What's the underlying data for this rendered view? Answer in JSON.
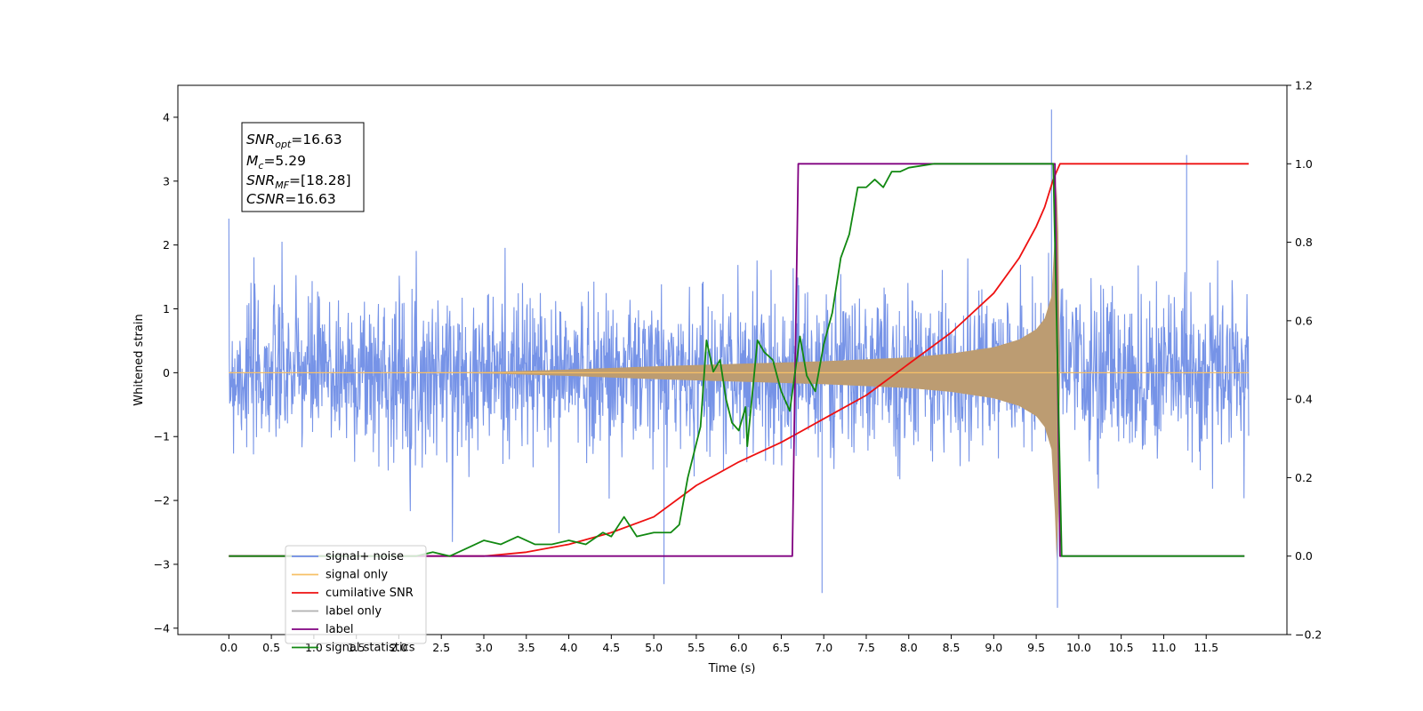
{
  "chart_data": {
    "type": "line",
    "xlabel": "Time (s)",
    "ylabel_left": "Whitened strain",
    "ylabel_right": "",
    "xlim": [
      -0.6,
      12.45
    ],
    "ylim_left": [
      -4.1,
      4.5
    ],
    "ylim_right": [
      -0.2,
      1.2
    ],
    "x_ticks": [
      "0.0",
      "0.5",
      "1.0",
      "1.5",
      "2.0",
      "2.5",
      "3.0",
      "3.5",
      "4.0",
      "4.5",
      "5.0",
      "5.5",
      "6.0",
      "6.5",
      "7.0",
      "7.5",
      "8.0",
      "8.5",
      "9.0",
      "9.5",
      "10.0",
      "10.5",
      "11.0",
      "11.5"
    ],
    "y_left_ticks": [
      "4",
      "3",
      "2",
      "1",
      "0",
      "−1",
      "−2",
      "−3",
      "−4"
    ],
    "y_right_ticks": [
      "1.2",
      "1.0",
      "0.8",
      "0.6",
      "0.4",
      "0.2",
      "0.0",
      "−0.2"
    ],
    "grid": false,
    "legend_position": "lower-left",
    "annotation": {
      "snr_opt": {
        "base": "SNR",
        "sub": "opt",
        "value": "=16.63"
      },
      "mc": {
        "base": "M",
        "sub": "c",
        "value": "=5.29"
      },
      "snr_mf": {
        "base": "SNR",
        "sub": "MF",
        "value": "=[18.28]"
      },
      "csnr": {
        "base": "CSNR",
        "value": "=16.63"
      }
    },
    "series": [
      {
        "name": "signal+ noise",
        "axis": "left",
        "color": "#6f8de6",
        "kind": "noise",
        "x_range": [
          0.0,
          12.0
        ],
        "typical_range": [
          -2.3,
          2.3
        ],
        "extremes": [
          [
            9.68,
            4.12
          ],
          [
            11.27,
            3.41
          ],
          [
            9.75,
            -3.68
          ],
          [
            6.98,
            -3.45
          ],
          [
            5.12,
            -3.31
          ]
        ]
      },
      {
        "name": "signal only",
        "axis": "left",
        "color": "#f7c067",
        "kind": "chirp",
        "x_range": [
          0.0,
          12.0
        ],
        "merger_time": 9.75,
        "envelope": [
          [
            0.0,
            0.0
          ],
          [
            3.0,
            0.01
          ],
          [
            4.0,
            0.05
          ],
          [
            5.0,
            0.1
          ],
          [
            6.0,
            0.14
          ],
          [
            7.0,
            0.18
          ],
          [
            8.0,
            0.24
          ],
          [
            8.5,
            0.3
          ],
          [
            9.0,
            0.4
          ],
          [
            9.3,
            0.52
          ],
          [
            9.5,
            0.68
          ],
          [
            9.6,
            0.85
          ],
          [
            9.68,
            1.2
          ],
          [
            9.72,
            2.2
          ],
          [
            9.75,
            3.3
          ],
          [
            9.78,
            0.0
          ],
          [
            12.0,
            0.0
          ]
        ]
      },
      {
        "name": "cumilative SNR",
        "axis": "right",
        "color": "#ee1111",
        "points": [
          [
            0.0,
            0.0
          ],
          [
            3.0,
            0.0
          ],
          [
            3.5,
            0.01
          ],
          [
            4.0,
            0.03
          ],
          [
            4.5,
            0.06
          ],
          [
            5.0,
            0.1
          ],
          [
            5.5,
            0.18
          ],
          [
            6.0,
            0.24
          ],
          [
            6.5,
            0.29
          ],
          [
            7.0,
            0.35
          ],
          [
            7.5,
            0.41
          ],
          [
            8.0,
            0.49
          ],
          [
            8.5,
            0.57
          ],
          [
            9.0,
            0.67
          ],
          [
            9.3,
            0.76
          ],
          [
            9.5,
            0.84
          ],
          [
            9.6,
            0.89
          ],
          [
            9.7,
            0.96
          ],
          [
            9.78,
            1.0
          ],
          [
            12.0,
            1.0
          ]
        ]
      },
      {
        "name": "label only",
        "axis": "right",
        "color": "#b0b0b0",
        "points": []
      },
      {
        "name": "label",
        "axis": "right",
        "color": "#800080",
        "points": [
          [
            0.0,
            0.0
          ],
          [
            6.63,
            0.0
          ],
          [
            6.7,
            1.0
          ],
          [
            9.72,
            1.0
          ],
          [
            9.78,
            0.0
          ],
          [
            11.95,
            0.0
          ]
        ]
      },
      {
        "name": "signal statistics",
        "axis": "right",
        "color": "#118811",
        "points": [
          [
            0.0,
            0.0
          ],
          [
            2.2,
            0.0
          ],
          [
            2.4,
            0.01
          ],
          [
            2.6,
            0.0
          ],
          [
            2.8,
            0.02
          ],
          [
            3.0,
            0.04
          ],
          [
            3.2,
            0.03
          ],
          [
            3.4,
            0.05
          ],
          [
            3.6,
            0.03
          ],
          [
            3.8,
            0.03
          ],
          [
            4.0,
            0.04
          ],
          [
            4.2,
            0.03
          ],
          [
            4.4,
            0.06
          ],
          [
            4.5,
            0.05
          ],
          [
            4.65,
            0.1
          ],
          [
            4.8,
            0.05
          ],
          [
            5.0,
            0.06
          ],
          [
            5.2,
            0.06
          ],
          [
            5.3,
            0.08
          ],
          [
            5.4,
            0.2
          ],
          [
            5.55,
            0.33
          ],
          [
            5.62,
            0.55
          ],
          [
            5.7,
            0.47
          ],
          [
            5.78,
            0.5
          ],
          [
            5.85,
            0.4
          ],
          [
            5.92,
            0.34
          ],
          [
            6.0,
            0.32
          ],
          [
            6.08,
            0.38
          ],
          [
            6.1,
            0.28
          ],
          [
            6.22,
            0.55
          ],
          [
            6.3,
            0.52
          ],
          [
            6.4,
            0.5
          ],
          [
            6.5,
            0.42
          ],
          [
            6.6,
            0.37
          ],
          [
            6.72,
            0.56
          ],
          [
            6.8,
            0.46
          ],
          [
            6.9,
            0.42
          ],
          [
            7.0,
            0.54
          ],
          [
            7.1,
            0.62
          ],
          [
            7.2,
            0.76
          ],
          [
            7.3,
            0.82
          ],
          [
            7.4,
            0.94
          ],
          [
            7.5,
            0.94
          ],
          [
            7.6,
            0.96
          ],
          [
            7.7,
            0.94
          ],
          [
            7.8,
            0.98
          ],
          [
            7.9,
            0.98
          ],
          [
            8.0,
            0.99
          ],
          [
            8.3,
            1.0
          ],
          [
            9.7,
            1.0
          ],
          [
            9.8,
            0.0
          ],
          [
            11.95,
            0.0
          ]
        ]
      }
    ]
  }
}
